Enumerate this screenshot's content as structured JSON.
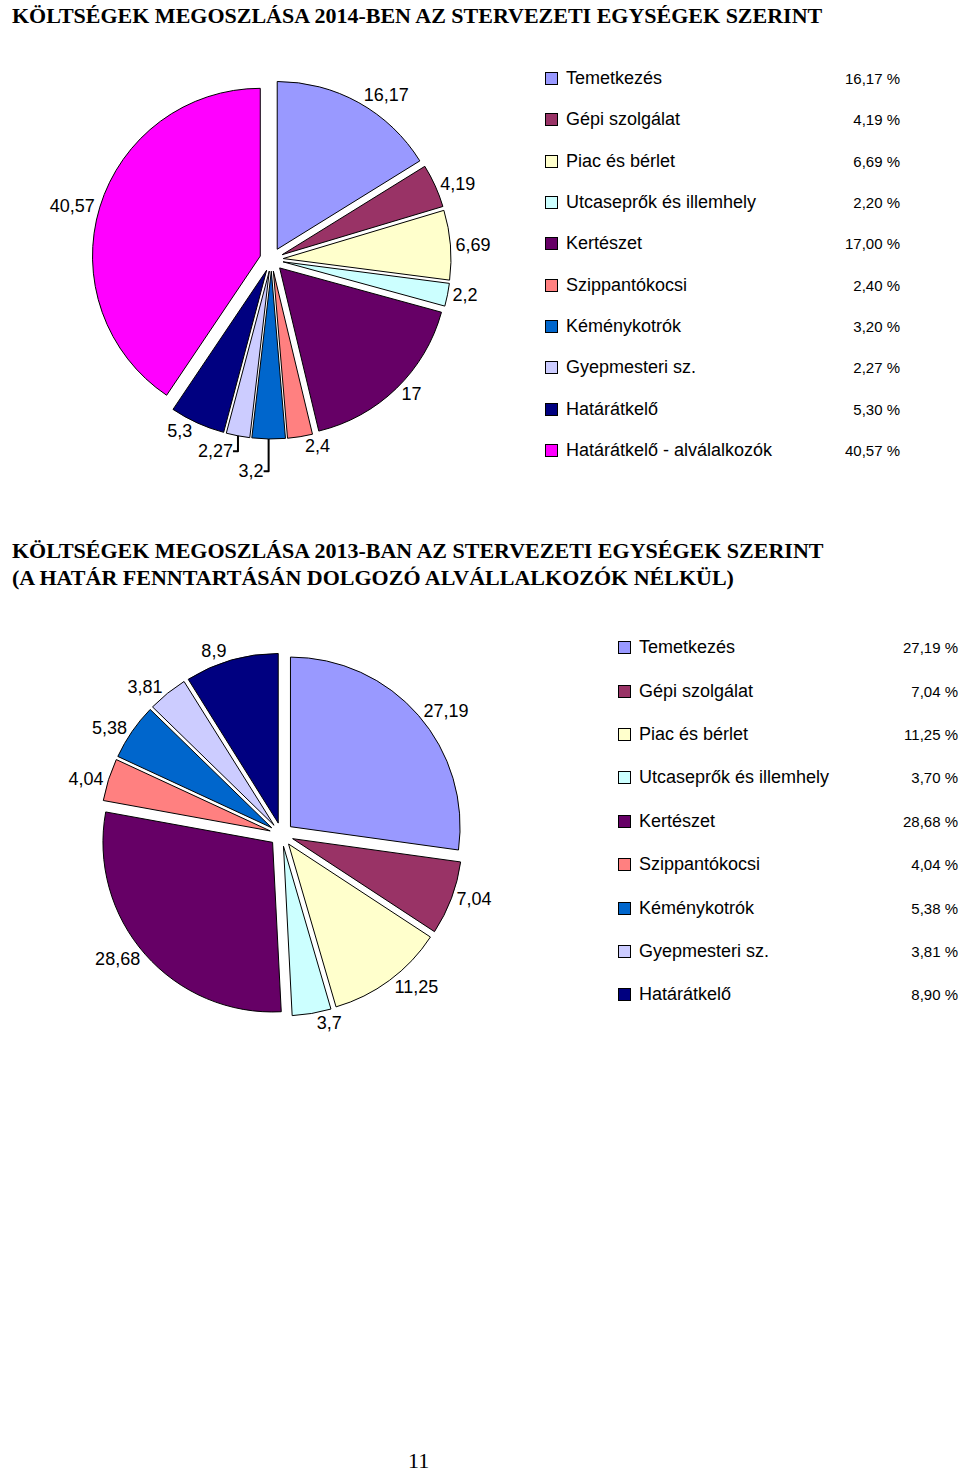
{
  "page_number": "11",
  "chart_data": [
    {
      "type": "pie",
      "title": "KÖLTSÉGEK MEGOSZLÁSA 2014-BEN AZ STERVEZETI EGYSÉGEK SZERINT",
      "categories": [
        "Temetkezés",
        "Gépi szolgálat",
        "Piac és bérlet",
        "Utcaseprők és illemhely",
        "Kertészet",
        "Szippantókocsi",
        "Kéménykotrók",
        "Gyepmesteri sz.",
        "Határátkelő",
        "Határátkelő - alválalkozók"
      ],
      "values": [
        16.17,
        4.19,
        6.69,
        2.2,
        17,
        2.4,
        3.2,
        2.27,
        5.3,
        40.57
      ],
      "value_labels": [
        "16,17",
        "4,19",
        "6,69",
        "2,2",
        "17",
        "2,4",
        "3,2",
        "2,27",
        "5,3",
        "40,57"
      ],
      "legend_labels": [
        "16,17 %",
        "4,19 %",
        "6,69 %",
        "2,20 %",
        "17,00 %",
        "2,40 %",
        "3,20 %",
        "2,27 %",
        "5,30 %",
        "40,57 %"
      ],
      "colors": [
        "#9999ff",
        "#993366",
        "#ffffcc",
        "#ccffff",
        "#660066",
        "#ff8080",
        "#0066cc",
        "#ccccff",
        "#000080",
        "#ff00ff"
      ],
      "data_labels": true,
      "legend": "right"
    },
    {
      "type": "pie",
      "title": "KÖLTSÉGEK MEGOSZLÁSA 2013-BAN AZ STERVEZETI EGYSÉGEK SZERINT\n(A HATÁR FENNTARTÁSÁN DOLGOZÓ ALVÁLLALKOZÓK NÉLKÜL)",
      "categories": [
        "Temetkezés",
        "Gépi szolgálat",
        "Piac és bérlet",
        "Utcaseprők és illemhely",
        "Kertészet",
        "Szippantókocsi",
        "Kéménykotrók",
        "Gyepmesteri sz.",
        "Határátkelő"
      ],
      "values": [
        27.19,
        7.04,
        11.25,
        3.7,
        28.68,
        4.04,
        5.38,
        3.81,
        8.9
      ],
      "value_labels": [
        "27,19",
        "7,04",
        "11,25",
        "3,7",
        "28,68",
        "4,04",
        "5,38",
        "3,81",
        "8,9"
      ],
      "legend_labels": [
        "27,19 %",
        "7,04 %",
        "11,25 %",
        "3,70 %",
        "28,68 %",
        "4,04 %",
        "5,38 %",
        "3,81 %",
        "8,90 %"
      ],
      "colors": [
        "#9999ff",
        "#993366",
        "#ffffcc",
        "#ccffff",
        "#660066",
        "#ff8080",
        "#0066cc",
        "#ccccff",
        "#000080"
      ],
      "data_labels": true,
      "legend": "right"
    }
  ]
}
